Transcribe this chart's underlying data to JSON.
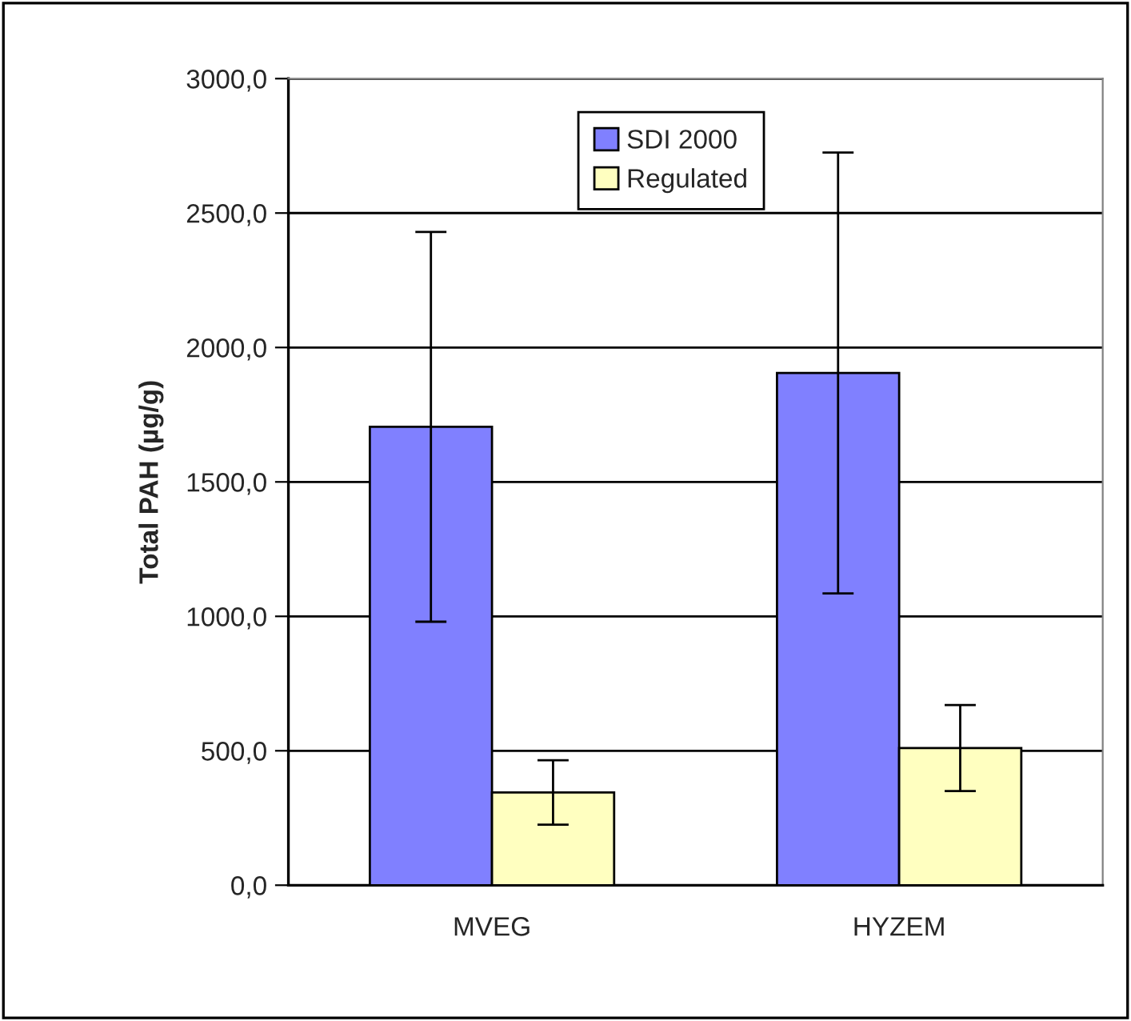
{
  "chart_data": {
    "type": "bar",
    "ylabel": "Total PAH (µg/g)",
    "categories": [
      "MVEG",
      "HYZEM"
    ],
    "series": [
      {
        "name": "SDI 2000",
        "color": "#8080ff",
        "values": [
          1705,
          1905
        ],
        "errors": [
          725,
          820
        ]
      },
      {
        "name": "Regulated",
        "color": "#ffffc0",
        "values": [
          345,
          510
        ],
        "errors": [
          120,
          160
        ]
      }
    ],
    "ylim": [
      0,
      3000
    ],
    "yticks": [
      {
        "value": 0,
        "label": "0,0"
      },
      {
        "value": 500,
        "label": "500,0"
      },
      {
        "value": 1000,
        "label": "1000,0"
      },
      {
        "value": 1500,
        "label": "1500,0"
      },
      {
        "value": 2000,
        "label": "2000,0"
      },
      {
        "value": 2500,
        "label": "2500,0"
      },
      {
        "value": 3000,
        "label": "3000,0"
      }
    ],
    "grid": "y",
    "legend": "top"
  }
}
